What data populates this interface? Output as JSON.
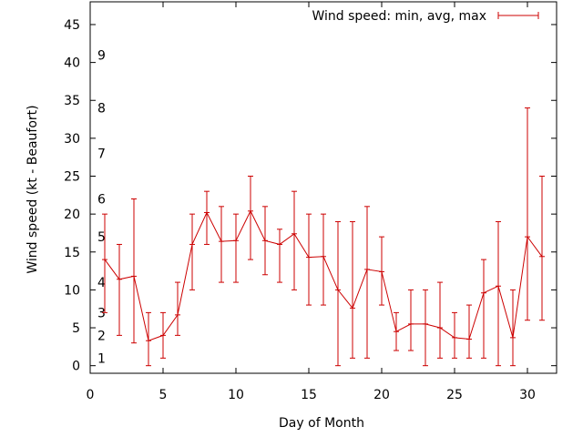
{
  "chart_data": {
    "type": "line",
    "xlabel": "Day of Month",
    "ylabel": "Wind speed (kt - Beaufort)",
    "xlim": [
      0,
      32
    ],
    "ylim": [
      -1,
      48
    ],
    "xticks": [
      "0",
      "5",
      "10",
      "15",
      "20",
      "25",
      "30"
    ],
    "xtick_values": [
      0,
      5,
      10,
      15,
      20,
      25,
      30
    ],
    "yticks": [
      "0",
      "5",
      "10",
      "15",
      "20",
      "25",
      "30",
      "35",
      "40",
      "45"
    ],
    "ytick_values": [
      0,
      5,
      10,
      15,
      20,
      25,
      30,
      35,
      40,
      45
    ],
    "grid": false,
    "legend_position": "top-right",
    "series_color": "#cc0000",
    "series": [
      {
        "name": "Wind speed: min, avg, max",
        "x": [
          1,
          2,
          3,
          4,
          5,
          6,
          7,
          8,
          9,
          10,
          11,
          12,
          13,
          14,
          15,
          16,
          17,
          18,
          19,
          20,
          21,
          22,
          23,
          24,
          25,
          26,
          27,
          28,
          29,
          30,
          31
        ],
        "avg": [
          14,
          11.4,
          11.8,
          3.3,
          4,
          6.7,
          16,
          20.2,
          16.4,
          16.5,
          20.4,
          16.5,
          16,
          17.4,
          14.3,
          14.4,
          10,
          7.6,
          12.7,
          12.4,
          4.5,
          5.5,
          5.5,
          5,
          3.7,
          3.5,
          9.6,
          10.5,
          3.7,
          17,
          14.4
        ],
        "min": [
          7,
          4,
          3,
          0,
          1,
          4,
          10,
          16,
          11,
          11,
          14,
          12,
          11,
          10,
          8,
          8,
          0,
          1,
          1,
          8,
          2,
          2,
          0,
          1,
          1,
          1,
          1,
          0,
          0,
          6,
          6
        ],
        "max": [
          20,
          16,
          22,
          7,
          7,
          11,
          20,
          23,
          21,
          20,
          25,
          21,
          18,
          23,
          20,
          20,
          19,
          19,
          21,
          17,
          7,
          10,
          10,
          11,
          7,
          8,
          14,
          19,
          10,
          34,
          25
        ]
      }
    ],
    "beaufort_labels": [
      {
        "text": "1",
        "y": 1
      },
      {
        "text": "2",
        "y": 4
      },
      {
        "text": "3",
        "y": 7
      },
      {
        "text": "4",
        "y": 11
      },
      {
        "text": "5",
        "y": 17
      },
      {
        "text": "6",
        "y": 22
      },
      {
        "text": "7",
        "y": 28
      },
      {
        "text": "8",
        "y": 34
      },
      {
        "text": "9",
        "y": 41
      }
    ]
  }
}
